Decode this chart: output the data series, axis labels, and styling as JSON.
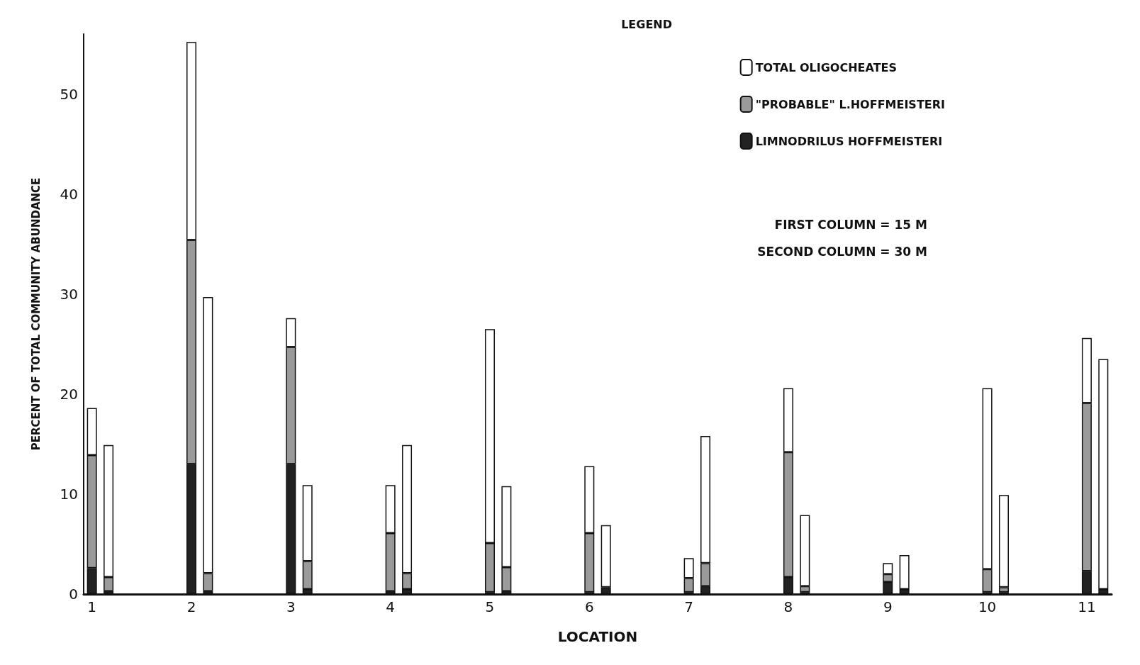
{
  "chart_data": {
    "type": "bar",
    "stacked": true,
    "xlabel": "LOCATION",
    "ylabel": "PERCENT OF TOTAL COMMUNITY ABUNDANCE",
    "legend_title": "LEGEND",
    "legend": "top right",
    "grid": false,
    "categories": [
      "1",
      null,
      null,
      null,
      null,
      null,
      "2",
      null,
      null,
      null,
      null,
      null,
      "3",
      null,
      null,
      null,
      null,
      null,
      "4",
      null,
      null,
      null,
      null,
      null,
      "5",
      null,
      null,
      null,
      null,
      null,
      "6",
      null,
      null,
      null,
      null,
      null,
      "7",
      null,
      null,
      null,
      null,
      null,
      "8",
      null,
      null,
      null,
      null,
      null,
      "9",
      null,
      null,
      null,
      null,
      null,
      "10",
      null,
      null,
      null,
      null,
      null,
      "11",
      null
    ],
    "ylim": [
      0,
      56
    ],
    "yticks": [
      0,
      10,
      20,
      30,
      40,
      50
    ],
    "series": [
      {
        "name": "LIMNODRILUS HOFFMEISTERI",
        "color": "#222222",
        "values": [
          2.6,
          0.3,
          null,
          null,
          null,
          null,
          13.0,
          0.3,
          null,
          null,
          null,
          null,
          13.0,
          0.5,
          null,
          null,
          null,
          null,
          0.3,
          0.5,
          null,
          null,
          null,
          null,
          0.2,
          0.3,
          null,
          null,
          null,
          null,
          0.2,
          0.7,
          null,
          null,
          null,
          null,
          0.2,
          0.8,
          null,
          null,
          null,
          null,
          1.7,
          0.2,
          null,
          null,
          null,
          null,
          1.2,
          0.5,
          null,
          null,
          null,
          null,
          0.2,
          0.2,
          null,
          null,
          null,
          null,
          2.3,
          0.5
        ]
      },
      {
        "name": "\"PROBABLE\" L.HOFFMEISTERI",
        "color": "#9a9a9a",
        "values": [
          11.3,
          1.4,
          null,
          null,
          null,
          null,
          22.4,
          1.8,
          null,
          null,
          null,
          null,
          11.7,
          2.8,
          null,
          null,
          null,
          null,
          5.8,
          1.6,
          null,
          null,
          null,
          null,
          4.9,
          2.4,
          null,
          null,
          null,
          null,
          5.9,
          null,
          null,
          null,
          null,
          null,
          1.4,
          2.3,
          null,
          null,
          null,
          null,
          12.5,
          0.6,
          null,
          null,
          null,
          null,
          0.8,
          null,
          null,
          null,
          null,
          null,
          2.3,
          0.5,
          null,
          null,
          null,
          null,
          16.8,
          null
        ]
      },
      {
        "name": "TOTAL OLIGOCHEATES",
        "color": "#ffffff",
        "values": [
          4.7,
          13.2,
          null,
          null,
          null,
          null,
          19.8,
          27.6,
          null,
          null,
          null,
          null,
          2.9,
          7.6,
          null,
          null,
          null,
          null,
          4.8,
          12.8,
          null,
          null,
          null,
          null,
          21.4,
          8.1,
          null,
          null,
          null,
          null,
          6.7,
          6.2,
          null,
          null,
          null,
          null,
          2.0,
          12.7,
          null,
          null,
          null,
          null,
          6.4,
          7.1,
          null,
          null,
          null,
          null,
          1.1,
          3.4,
          null,
          null,
          null,
          null,
          18.1,
          9.2,
          null,
          null,
          null,
          null,
          6.5,
          23.0
        ]
      }
    ],
    "annotations": [
      "FIRST COLUMN = 15 M",
      "SECOND COLUMN = 30 M"
    ]
  }
}
